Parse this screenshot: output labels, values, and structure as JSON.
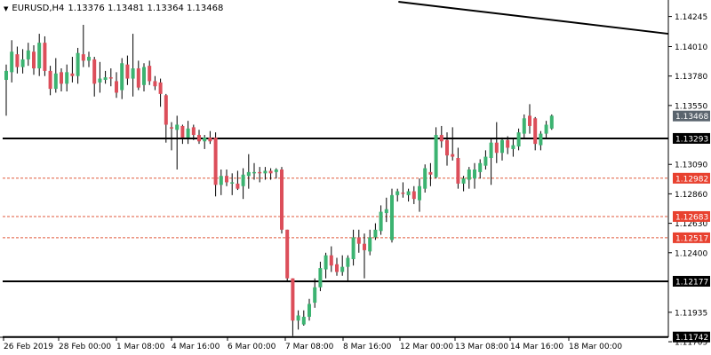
{
  "header": {
    "symbol": "EURUSD,H4",
    "ohlc": "1.13376 1.13481 1.13364 1.13468"
  },
  "colors": {
    "bull": "#3cb371",
    "bear": "#dc4e5a",
    "wick": "#000000",
    "support_line": "#000000",
    "dashed_line": "#e05a3c",
    "current_price_box": "#5a646e",
    "hline_box_black": "#000000",
    "hline_box_red": "#e8412f"
  },
  "chart_data": {
    "type": "candlestick",
    "ylim": [
      1.1174,
      1.1436
    ],
    "x_tick_labels": [
      "26 Feb 2019",
      "28 Feb 00:00",
      "1 Mar 08:00",
      "4 Mar 16:00",
      "6 Mar 00:00",
      "7 Mar 08:00",
      "8 Mar 16:00",
      "12 Mar 00:00",
      "13 Mar 08:00",
      "14 Mar 16:00",
      "18 Mar 00:00"
    ],
    "y_tick_labels": [
      "1.14245",
      "1.14010",
      "1.13780",
      "1.13550",
      "1.13090",
      "1.12860",
      "1.12630",
      "1.12400",
      "1.11935",
      "1.11705"
    ],
    "current_price": "1.13468",
    "horizontal_lines": [
      {
        "price": "1.13293",
        "style": "solid"
      },
      {
        "price": "1.12982",
        "style": "dashed"
      },
      {
        "price": "1.12683",
        "style": "dashed"
      },
      {
        "price": "1.12517",
        "style": "dashed"
      },
      {
        "price": "1.12177",
        "style": "solid"
      },
      {
        "price": "1.11742",
        "style": "solid"
      }
    ],
    "trendline": {
      "start_index": 71.5,
      "start_price": 1.1436,
      "end_index": 125,
      "end_price": 1.1411
    },
    "candles": [
      {
        "o": 1.1375,
        "h": 1.1387,
        "l": 1.1347,
        "c": 1.1382
      },
      {
        "o": 1.1381,
        "h": 1.1406,
        "l": 1.1373,
        "c": 1.1397
      },
      {
        "o": 1.1395,
        "h": 1.1401,
        "l": 1.138,
        "c": 1.1385
      },
      {
        "o": 1.1385,
        "h": 1.1399,
        "l": 1.138,
        "c": 1.1391
      },
      {
        "o": 1.1391,
        "h": 1.1404,
        "l": 1.1386,
        "c": 1.1398
      },
      {
        "o": 1.1397,
        "h": 1.1402,
        "l": 1.1379,
        "c": 1.1384
      },
      {
        "o": 1.1384,
        "h": 1.1411,
        "l": 1.1378,
        "c": 1.1404
      },
      {
        "o": 1.1404,
        "h": 1.1409,
        "l": 1.1378,
        "c": 1.1382
      },
      {
        "o": 1.1382,
        "h": 1.1386,
        "l": 1.1363,
        "c": 1.1368
      },
      {
        "o": 1.1368,
        "h": 1.1392,
        "l": 1.1365,
        "c": 1.138
      },
      {
        "o": 1.1381,
        "h": 1.1384,
        "l": 1.1366,
        "c": 1.1372
      },
      {
        "o": 1.1372,
        "h": 1.1387,
        "l": 1.1366,
        "c": 1.1381
      },
      {
        "o": 1.138,
        "h": 1.1393,
        "l": 1.1373,
        "c": 1.1378
      },
      {
        "o": 1.1378,
        "h": 1.14,
        "l": 1.1372,
        "c": 1.1396
      },
      {
        "o": 1.1395,
        "h": 1.1418,
        "l": 1.1385,
        "c": 1.139
      },
      {
        "o": 1.139,
        "h": 1.1397,
        "l": 1.1385,
        "c": 1.1393
      },
      {
        "o": 1.1391,
        "h": 1.1393,
        "l": 1.1362,
        "c": 1.1372
      },
      {
        "o": 1.1373,
        "h": 1.1389,
        "l": 1.1365,
        "c": 1.1376
      },
      {
        "o": 1.1375,
        "h": 1.1382,
        "l": 1.1372,
        "c": 1.1377
      },
      {
        "o": 1.1377,
        "h": 1.1384,
        "l": 1.137,
        "c": 1.1376
      },
      {
        "o": 1.1374,
        "h": 1.1381,
        "l": 1.1361,
        "c": 1.1365
      },
      {
        "o": 1.1367,
        "h": 1.1392,
        "l": 1.136,
        "c": 1.1388
      },
      {
        "o": 1.1387,
        "h": 1.1394,
        "l": 1.1371,
        "c": 1.1376
      },
      {
        "o": 1.1376,
        "h": 1.1411,
        "l": 1.1362,
        "c": 1.1384
      },
      {
        "o": 1.1384,
        "h": 1.139,
        "l": 1.1367,
        "c": 1.1369
      },
      {
        "o": 1.1371,
        "h": 1.1388,
        "l": 1.1366,
        "c": 1.1385
      },
      {
        "o": 1.1386,
        "h": 1.139,
        "l": 1.1371,
        "c": 1.1374
      },
      {
        "o": 1.1374,
        "h": 1.1378,
        "l": 1.1367,
        "c": 1.137
      },
      {
        "o": 1.1373,
        "h": 1.1376,
        "l": 1.1354,
        "c": 1.1364
      },
      {
        "o": 1.1363,
        "h": 1.1364,
        "l": 1.1326,
        "c": 1.134
      },
      {
        "o": 1.1338,
        "h": 1.1342,
        "l": 1.132,
        "c": 1.1337
      },
      {
        "o": 1.1336,
        "h": 1.1347,
        "l": 1.1305,
        "c": 1.134
      },
      {
        "o": 1.1339,
        "h": 1.134,
        "l": 1.1325,
        "c": 1.133
      },
      {
        "o": 1.133,
        "h": 1.1343,
        "l": 1.1325,
        "c": 1.1337
      },
      {
        "o": 1.1338,
        "h": 1.134,
        "l": 1.1328,
        "c": 1.1332
      },
      {
        "o": 1.1332,
        "h": 1.1336,
        "l": 1.1325,
        "c": 1.1327
      },
      {
        "o": 1.1327,
        "h": 1.1332,
        "l": 1.1321,
        "c": 1.133
      },
      {
        "o": 1.133,
        "h": 1.1335,
        "l": 1.1325,
        "c": 1.1327
      },
      {
        "o": 1.133,
        "h": 1.1334,
        "l": 1.1284,
        "c": 1.1293
      },
      {
        "o": 1.1293,
        "h": 1.1305,
        "l": 1.1285,
        "c": 1.13
      },
      {
        "o": 1.13,
        "h": 1.1305,
        "l": 1.1292,
        "c": 1.1295
      },
      {
        "o": 1.1294,
        "h": 1.1302,
        "l": 1.1285,
        "c": 1.1295
      },
      {
        "o": 1.1294,
        "h": 1.1304,
        "l": 1.1289,
        "c": 1.129
      },
      {
        "o": 1.1292,
        "h": 1.1306,
        "l": 1.1282,
        "c": 1.1301
      },
      {
        "o": 1.13,
        "h": 1.1317,
        "l": 1.129,
        "c": 1.1303
      },
      {
        "o": 1.1302,
        "h": 1.131,
        "l": 1.1297,
        "c": 1.1303
      },
      {
        "o": 1.1303,
        "h": 1.1307,
        "l": 1.1295,
        "c": 1.1302
      },
      {
        "o": 1.1302,
        "h": 1.1307,
        "l": 1.1297,
        "c": 1.1304
      },
      {
        "o": 1.1304,
        "h": 1.1306,
        "l": 1.1297,
        "c": 1.1302
      },
      {
        "o": 1.1303,
        "h": 1.1306,
        "l": 1.1298,
        "c": 1.1305
      },
      {
        "o": 1.1305,
        "h": 1.1307,
        "l": 1.1255,
        "c": 1.1258
      },
      {
        "o": 1.1258,
        "h": 1.1258,
        "l": 1.1217,
        "c": 1.122
      },
      {
        "o": 1.122,
        "h": 1.122,
        "l": 1.1175,
        "c": 1.1187
      },
      {
        "o": 1.1187,
        "h": 1.1195,
        "l": 1.118,
        "c": 1.1191
      },
      {
        "o": 1.1184,
        "h": 1.1195,
        "l": 1.1183,
        "c": 1.119
      },
      {
        "o": 1.119,
        "h": 1.1204,
        "l": 1.1187,
        "c": 1.12
      },
      {
        "o": 1.1201,
        "h": 1.122,
        "l": 1.1197,
        "c": 1.1213
      },
      {
        "o": 1.1213,
        "h": 1.1233,
        "l": 1.121,
        "c": 1.1228
      },
      {
        "o": 1.1227,
        "h": 1.124,
        "l": 1.122,
        "c": 1.1238
      },
      {
        "o": 1.1238,
        "h": 1.1245,
        "l": 1.1225,
        "c": 1.123
      },
      {
        "o": 1.1231,
        "h": 1.1236,
        "l": 1.1222,
        "c": 1.1225
      },
      {
        "o": 1.1225,
        "h": 1.1238,
        "l": 1.1222,
        "c": 1.1229
      },
      {
        "o": 1.1229,
        "h": 1.1238,
        "l": 1.1218,
        "c": 1.1236
      },
      {
        "o": 1.1235,
        "h": 1.1258,
        "l": 1.123,
        "c": 1.1252
      },
      {
        "o": 1.1252,
        "h": 1.1258,
        "l": 1.124,
        "c": 1.1247
      },
      {
        "o": 1.1247,
        "h": 1.1255,
        "l": 1.122,
        "c": 1.1242
      },
      {
        "o": 1.1241,
        "h": 1.1258,
        "l": 1.1238,
        "c": 1.1252
      },
      {
        "o": 1.1252,
        "h": 1.1263,
        "l": 1.125,
        "c": 1.1258
      },
      {
        "o": 1.1257,
        "h": 1.1277,
        "l": 1.1254,
        "c": 1.1272
      },
      {
        "o": 1.1271,
        "h": 1.1283,
        "l": 1.1264,
        "c": 1.1274
      },
      {
        "o": 1.125,
        "h": 1.129,
        "l": 1.1248,
        "c": 1.1285
      },
      {
        "o": 1.1285,
        "h": 1.129,
        "l": 1.128,
        "c": 1.1288
      },
      {
        "o": 1.1287,
        "h": 1.1295,
        "l": 1.1283,
        "c": 1.1286
      },
      {
        "o": 1.1285,
        "h": 1.129,
        "l": 1.128,
        "c": 1.1288
      },
      {
        "o": 1.1288,
        "h": 1.1292,
        "l": 1.1278,
        "c": 1.1282
      },
      {
        "o": 1.1281,
        "h": 1.1298,
        "l": 1.1272,
        "c": 1.1292
      },
      {
        "o": 1.129,
        "h": 1.1309,
        "l": 1.1287,
        "c": 1.1306
      },
      {
        "o": 1.1303,
        "h": 1.131,
        "l": 1.1292,
        "c": 1.1301
      },
      {
        "o": 1.1299,
        "h": 1.1338,
        "l": 1.1298,
        "c": 1.1332
      },
      {
        "o": 1.1332,
        "h": 1.1339,
        "l": 1.1322,
        "c": 1.1327
      },
      {
        "o": 1.1328,
        "h": 1.1334,
        "l": 1.1308,
        "c": 1.1316
      },
      {
        "o": 1.1317,
        "h": 1.1338,
        "l": 1.1312,
        "c": 1.1315
      },
      {
        "o": 1.1314,
        "h": 1.1322,
        "l": 1.129,
        "c": 1.1294
      },
      {
        "o": 1.1294,
        "h": 1.13,
        "l": 1.1288,
        "c": 1.1298
      },
      {
        "o": 1.1297,
        "h": 1.1307,
        "l": 1.129,
        "c": 1.1305
      },
      {
        "o": 1.1298,
        "h": 1.131,
        "l": 1.129,
        "c": 1.1305
      },
      {
        "o": 1.1303,
        "h": 1.1313,
        "l": 1.1298,
        "c": 1.131
      },
      {
        "o": 1.1308,
        "h": 1.132,
        "l": 1.1305,
        "c": 1.1315
      },
      {
        "o": 1.1314,
        "h": 1.1329,
        "l": 1.1293,
        "c": 1.1326
      },
      {
        "o": 1.1326,
        "h": 1.1342,
        "l": 1.131,
        "c": 1.1318
      },
      {
        "o": 1.1318,
        "h": 1.133,
        "l": 1.1312,
        "c": 1.1328
      },
      {
        "o": 1.1328,
        "h": 1.1331,
        "l": 1.1317,
        "c": 1.1322
      },
      {
        "o": 1.1321,
        "h": 1.1329,
        "l": 1.1315,
        "c": 1.1324
      },
      {
        "o": 1.1323,
        "h": 1.1337,
        "l": 1.132,
        "c": 1.1334
      },
      {
        "o": 1.1333,
        "h": 1.1348,
        "l": 1.133,
        "c": 1.1345
      },
      {
        "o": 1.1347,
        "h": 1.1356,
        "l": 1.1333,
        "c": 1.1339
      },
      {
        "o": 1.1345,
        "h": 1.1346,
        "l": 1.132,
        "c": 1.1325
      },
      {
        "o": 1.1324,
        "h": 1.1335,
        "l": 1.132,
        "c": 1.1333
      },
      {
        "o": 1.1333,
        "h": 1.1343,
        "l": 1.133,
        "c": 1.134
      },
      {
        "o": 1.1337,
        "h": 1.1348,
        "l": 1.1336,
        "c": 1.1347
      }
    ]
  }
}
